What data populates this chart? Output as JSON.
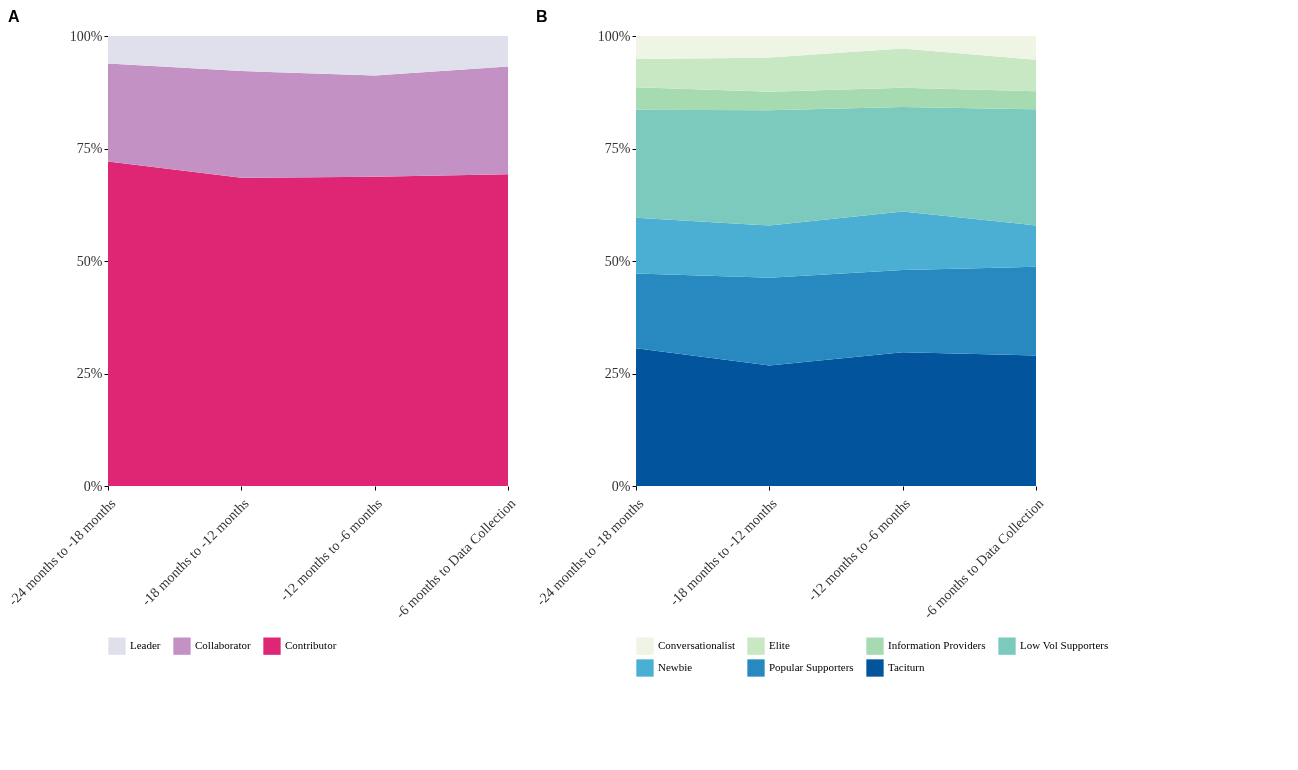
{
  "chart_data": [
    {
      "type": "area",
      "title": "A",
      "stacked": true,
      "legend": "bottom",
      "grid": false,
      "categories": [
        "-24 months to -18 months",
        "-18 months to -12 months",
        "-12 months to -6 months",
        "-6 months to Data Collection"
      ],
      "ylim": [
        0,
        100
      ],
      "yticks": [
        {
          "value": 0,
          "label": "0%"
        },
        {
          "value": 25,
          "label": "25%"
        },
        {
          "value": 50,
          "label": "50%"
        },
        {
          "value": 75,
          "label": "75%"
        },
        {
          "value": 100,
          "label": "100%"
        }
      ],
      "series": [
        {
          "name": "Contributor",
          "color": "#df2674",
          "values": [
            72.1,
            68.5,
            68.7,
            69.3
          ]
        },
        {
          "name": "Collaborator",
          "color": "#c491c5",
          "values": [
            21.8,
            23.7,
            22.5,
            23.9
          ]
        },
        {
          "name": "Leader",
          "color": "#e0e0ec",
          "values": [
            6.1,
            7.8,
            8.8,
            6.8
          ]
        }
      ]
    },
    {
      "type": "area",
      "title": "B",
      "stacked": true,
      "legend": "bottom",
      "grid": false,
      "categories": [
        "-24 months to -18 months",
        "-18 months to -12 months",
        "-12 months to -6 months",
        "-6 months to Data Collection"
      ],
      "ylim": [
        0,
        100
      ],
      "yticks": [
        {
          "value": 0,
          "label": "0%"
        },
        {
          "value": 25,
          "label": "25%"
        },
        {
          "value": 50,
          "label": "50%"
        },
        {
          "value": 75,
          "label": "75%"
        },
        {
          "value": 100,
          "label": "100%"
        }
      ],
      "series": [
        {
          "name": "Taciturn",
          "color": "#02559c",
          "values": [
            30.6,
            26.8,
            29.7,
            29.0
          ]
        },
        {
          "name": "Popular Supporters",
          "color": "#2889c0",
          "values": [
            16.6,
            19.5,
            18.3,
            19.7
          ]
        },
        {
          "name": "Newbie",
          "color": "#4aafd2",
          "values": [
            12.4,
            11.6,
            13.0,
            9.2
          ]
        },
        {
          "name": "Low Vol Supporters",
          "color": "#7bcabd",
          "values": [
            24.0,
            25.6,
            23.2,
            25.8
          ]
        },
        {
          "name": "Information Providers",
          "color": "#a6dab0",
          "values": [
            5.0,
            4.1,
            4.3,
            4.0
          ]
        },
        {
          "name": "Elite",
          "color": "#c8e7c3",
          "values": [
            6.3,
            7.6,
            8.7,
            7.0
          ]
        },
        {
          "name": "Conversationalist",
          "color": "#eef5e5",
          "values": [
            5.1,
            4.8,
            2.8,
            5.3
          ]
        }
      ]
    }
  ]
}
